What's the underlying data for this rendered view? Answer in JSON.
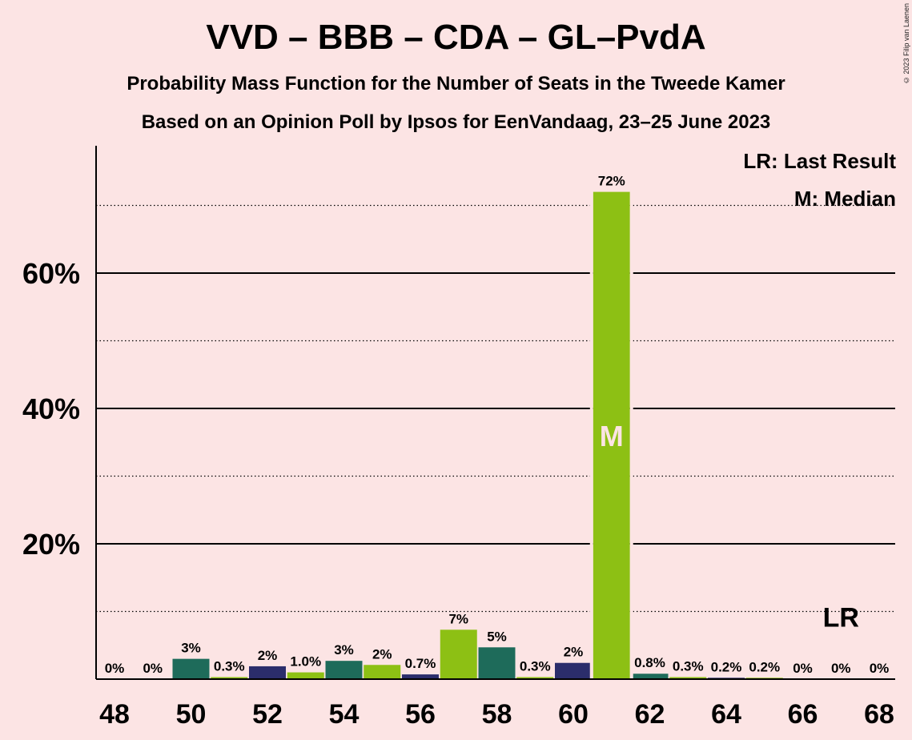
{
  "title": "VVD – BBB – CDA – GL–PvdA",
  "subtitle1": "Probability Mass Function for the Number of Seats in the Tweede Kamer",
  "subtitle2": "Based on an Opinion Poll by Ipsos for EenVandaag, 23–25 June 2023",
  "copyright": "© 2023 Filip van Laenen",
  "legend": {
    "last_result": "LR: Last Result",
    "median": "M: Median"
  },
  "colors": {
    "background": "#fce4e4",
    "palette": [
      "#1e6b5a",
      "#2b2d6b",
      "#8dc014"
    ]
  },
  "chart_data": {
    "type": "bar",
    "x": [
      48,
      49,
      50,
      51,
      52,
      53,
      54,
      55,
      56,
      57,
      58,
      59,
      60,
      61,
      62,
      63,
      64,
      65,
      66,
      67,
      68
    ],
    "values": [
      0,
      0,
      3.0,
      0.3,
      1.9,
      1.0,
      2.7,
      2.1,
      0.7,
      7.3,
      4.7,
      0.3,
      2.4,
      72.0,
      0.8,
      0.3,
      0.2,
      0.2,
      0,
      0,
      0
    ],
    "value_labels": [
      "0%",
      "0%",
      "3%",
      "0.3%",
      "2%",
      "1.0%",
      "3%",
      "2%",
      "0.7%",
      "7%",
      "5%",
      "0.3%",
      "2%",
      "72%",
      "0.8%",
      "0.3%",
      "0.2%",
      "0.2%",
      "0%",
      "0%",
      "0%"
    ],
    "bar_colors": [
      "#1e6b5a",
      "#2b2d6b",
      "#1e6b5a",
      "#8dc014",
      "#2b2d6b",
      "#8dc014",
      "#1e6b5a",
      "#8dc014",
      "#2b2d6b",
      "#8dc014",
      "#1e6b5a",
      "#8dc014",
      "#2b2d6b",
      "#8dc014",
      "#1e6b5a",
      "#8dc014",
      "#2b2d6b",
      "#8dc014",
      "#1e6b5a",
      "#8dc014",
      "#2b2d6b"
    ],
    "x_ticks": [
      48,
      50,
      52,
      54,
      56,
      58,
      60,
      62,
      64,
      66,
      68
    ],
    "y_ticks": [
      20,
      40,
      60
    ],
    "y_tick_labels": [
      "20%",
      "40%",
      "60%"
    ],
    "y_minor_gridlines": [
      10,
      30,
      50,
      70
    ],
    "ylim": [
      0,
      78
    ],
    "median_seat": 61,
    "median_marker": "M",
    "last_result_seat": 67,
    "last_result_marker": "LR",
    "legend_position": "top-right"
  }
}
